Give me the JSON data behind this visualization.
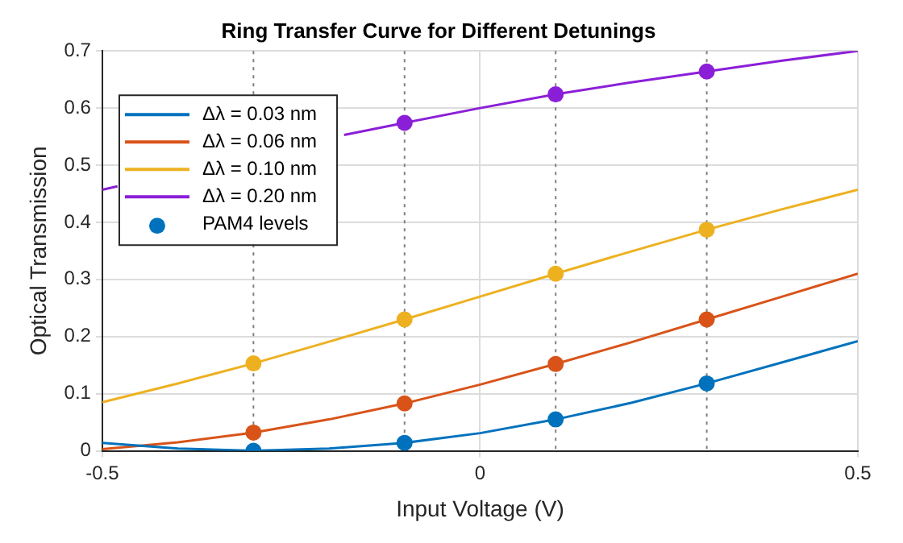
{
  "chart_data": {
    "type": "line",
    "title": "Ring Transfer Curve for Different Detunings",
    "xlabel": "Input Voltage (V)",
    "ylabel": "Optical Transmission",
    "x": [
      -0.5,
      -0.4,
      -0.3,
      -0.2,
      -0.1,
      0,
      0.1,
      0.2,
      0.3,
      0.4,
      0.5
    ],
    "series": [
      {
        "name": "Δλ = 0.03 nm",
        "color": "#0072bd",
        "values": [
          0.014,
          0.004,
          0.0,
          0.004,
          0.014,
          0.031,
          0.055,
          0.084,
          0.118,
          0.155,
          0.192
        ]
      },
      {
        "name": "Δλ = 0.06 nm",
        "color": "#d95319",
        "values": [
          0.003,
          0.015,
          0.032,
          0.055,
          0.083,
          0.116,
          0.152,
          0.19,
          0.23,
          0.27,
          0.31
        ]
      },
      {
        "name": "Δλ = 0.10 nm",
        "color": "#edb120",
        "values": [
          0.085,
          0.118,
          0.153,
          0.191,
          0.23,
          0.27,
          0.31,
          0.349,
          0.387,
          0.423,
          0.457
        ]
      },
      {
        "name": "Δλ = 0.20 nm",
        "color": "#8b1fd8",
        "x": [
          -0.5,
          -0.48,
          -0.3,
          -0.18,
          -0.1,
          0,
          0.1,
          0.2,
          0.3,
          0.4,
          0.5
        ],
        "values": [
          0.457,
          0.463,
          null,
          0.553,
          0.574,
          0.6,
          0.624,
          0.645,
          0.664,
          0.683,
          0.7
        ]
      },
      {
        "name": "PAM4 levels",
        "type": "scatter",
        "marker": "circle",
        "color": "#0072bd",
        "x": [
          -0.3,
          -0.1,
          0.1,
          0.3,
          -0.3,
          -0.1,
          0.1,
          0.3,
          -0.3,
          -0.1,
          0.1,
          0.3,
          -0.1,
          0.1,
          0.3
        ],
        "values": [
          0.0,
          0.014,
          0.055,
          0.118,
          0.032,
          0.083,
          0.152,
          0.23,
          0.153,
          0.23,
          0.31,
          0.387,
          0.574,
          0.624,
          0.664
        ],
        "colors": [
          "#0072bd",
          "#0072bd",
          "#0072bd",
          "#0072bd",
          "#d95319",
          "#d95319",
          "#d95319",
          "#d95319",
          "#edb120",
          "#edb120",
          "#edb120",
          "#edb120",
          "#8b1fd8",
          "#8b1fd8",
          "#8b1fd8"
        ]
      }
    ],
    "ref_lines": [
      {
        "axis": "x",
        "value": -0.3,
        "color": "#808080",
        "line_style": "dotted"
      },
      {
        "axis": "x",
        "value": -0.1,
        "color": "#808080",
        "line_style": "dotted"
      },
      {
        "axis": "x",
        "value": 0.1,
        "color": "#808080",
        "line_style": "dotted"
      },
      {
        "axis": "x",
        "value": 0.3,
        "color": "#808080",
        "line_style": "dotted"
      }
    ],
    "xlim": [
      -0.5,
      0.5
    ],
    "xticks": [
      -0.5,
      0,
      0.5
    ],
    "ylim": [
      0,
      0.7
    ],
    "yticks": [
      0,
      0.1,
      0.2,
      0.3,
      0.4,
      0.5,
      0.6,
      0.7
    ],
    "grid": true,
    "legend": "top left"
  }
}
